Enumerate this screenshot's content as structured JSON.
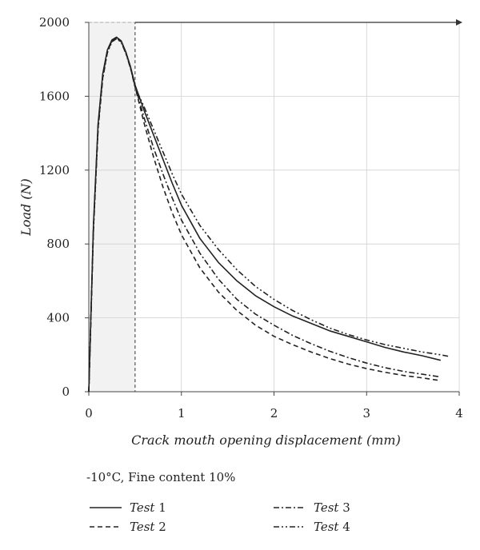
{
  "chart_data": {
    "type": "line",
    "title": "",
    "xlabel": "Crack mouth opening displacement (mm)",
    "ylabel": "Load (N)",
    "xlim": [
      0,
      4
    ],
    "ylim": [
      0,
      2000
    ],
    "xticks": [
      "0",
      "1",
      "2",
      "3",
      "4"
    ],
    "yticks": [
      "0",
      "400",
      "800",
      "1200",
      "1600",
      "2000"
    ],
    "grid": true,
    "highlight_region": {
      "x": [
        0,
        0.5
      ],
      "y": [
        0,
        2000
      ]
    },
    "series": [
      {
        "name": "Test 1",
        "style": "solid",
        "x": [
          0,
          0.05,
          0.1,
          0.15,
          0.2,
          0.25,
          0.3,
          0.35,
          0.4,
          0.45,
          0.5,
          0.6,
          0.7,
          0.8,
          0.9,
          1.0,
          1.2,
          1.4,
          1.6,
          1.8,
          2.0,
          2.2,
          2.4,
          2.6,
          2.8,
          3.0,
          3.2,
          3.4,
          3.6,
          3.8
        ],
        "y": [
          0,
          900,
          1450,
          1720,
          1850,
          1905,
          1920,
          1900,
          1840,
          1760,
          1660,
          1520,
          1390,
          1260,
          1130,
          1010,
          830,
          700,
          600,
          520,
          460,
          410,
          370,
          330,
          300,
          270,
          240,
          215,
          195,
          170
        ]
      },
      {
        "name": "Test 2",
        "style": "dashed",
        "x": [
          0,
          0.05,
          0.1,
          0.15,
          0.2,
          0.25,
          0.3,
          0.35,
          0.4,
          0.45,
          0.5,
          0.6,
          0.7,
          0.8,
          0.9,
          1.0,
          1.2,
          1.4,
          1.6,
          1.8,
          2.0,
          2.2,
          2.4,
          2.6,
          2.8,
          3.0,
          3.2,
          3.4,
          3.6,
          3.8
        ],
        "y": [
          0,
          880,
          1430,
          1700,
          1840,
          1900,
          1915,
          1895,
          1835,
          1755,
          1650,
          1450,
          1270,
          1110,
          970,
          850,
          670,
          540,
          440,
          360,
          300,
          255,
          215,
          180,
          150,
          125,
          105,
          88,
          75,
          60
        ]
      },
      {
        "name": "Test 3",
        "style": "dashdot",
        "x": [
          0,
          0.05,
          0.1,
          0.15,
          0.2,
          0.25,
          0.3,
          0.35,
          0.4,
          0.45,
          0.5,
          0.6,
          0.7,
          0.8,
          0.9,
          1.0,
          1.2,
          1.4,
          1.6,
          1.8,
          2.0,
          2.2,
          2.4,
          2.6,
          2.8,
          3.0,
          3.2,
          3.4,
          3.6,
          3.8
        ],
        "y": [
          0,
          890,
          1440,
          1710,
          1845,
          1900,
          1918,
          1898,
          1838,
          1758,
          1655,
          1480,
          1320,
          1180,
          1050,
          930,
          750,
          610,
          500,
          420,
          360,
          305,
          260,
          220,
          185,
          155,
          130,
          110,
          95,
          80
        ]
      },
      {
        "name": "Test 4",
        "style": "dashdotdot",
        "x": [
          0,
          0.05,
          0.1,
          0.15,
          0.2,
          0.25,
          0.3,
          0.35,
          0.4,
          0.45,
          0.5,
          0.6,
          0.7,
          0.8,
          0.9,
          1.0,
          1.2,
          1.4,
          1.6,
          1.8,
          2.0,
          2.2,
          2.4,
          2.6,
          2.8,
          3.0,
          3.2,
          3.4,
          3.6,
          3.8,
          3.9
        ],
        "y": [
          0,
          870,
          1420,
          1695,
          1835,
          1895,
          1912,
          1892,
          1832,
          1752,
          1648,
          1540,
          1420,
          1300,
          1180,
          1070,
          900,
          770,
          660,
          570,
          500,
          440,
          390,
          345,
          310,
          280,
          255,
          235,
          215,
          200,
          190
        ]
      }
    ]
  },
  "caption": "-10°C, Fine content 10%",
  "legend": [
    {
      "prefix": "Test",
      "number": "1",
      "style": "solid"
    },
    {
      "prefix": "Test",
      "number": "2",
      "style": "dashed"
    },
    {
      "prefix": "Test",
      "number": "3",
      "style": "dashdot"
    },
    {
      "prefix": "Test",
      "number": "4",
      "style": "dashdotdot"
    }
  ]
}
